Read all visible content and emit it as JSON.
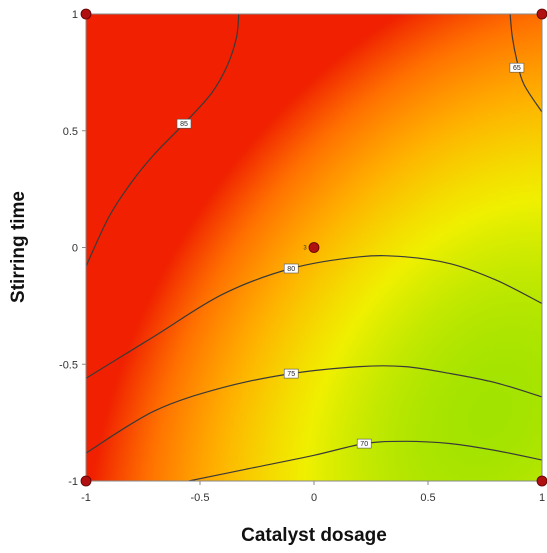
{
  "chart_data": {
    "type": "heatmap",
    "subtype": "contour",
    "title": "",
    "xlabel": "Catalyst dosage",
    "ylabel": "Stirring time",
    "xlim": [
      -1,
      1
    ],
    "ylim": [
      -1,
      1
    ],
    "x_ticks": [
      {
        "value": -1,
        "label": "-1"
      },
      {
        "value": -0.5,
        "label": "-0.5"
      },
      {
        "value": 0,
        "label": "0"
      },
      {
        "value": 0.5,
        "label": "0.5"
      },
      {
        "value": 1,
        "label": "1"
      }
    ],
    "y_ticks": [
      {
        "value": -1,
        "label": "-1"
      },
      {
        "value": -0.5,
        "label": "-0.5"
      },
      {
        "value": 0,
        "label": "0"
      },
      {
        "value": 0.5,
        "label": "0.5"
      },
      {
        "value": 1,
        "label": "1"
      }
    ],
    "colormap": [
      "#00e8c8",
      "#00e000",
      "#8ee000",
      "#f0f000",
      "#ffb000",
      "#ff7000",
      "#f02000"
    ],
    "value_range": [
      68,
      88
    ],
    "contours": [
      {
        "level": 65,
        "label": "65",
        "points": [
          [
            0.86,
            1.0
          ],
          [
            0.87,
            0.9
          ],
          [
            0.89,
            0.8
          ],
          [
            0.92,
            0.7
          ],
          [
            1.0,
            0.58
          ]
        ],
        "label_at": [
          0.89,
          0.77
        ]
      },
      {
        "level": 85,
        "label": "85",
        "points": [
          [
            -1.0,
            -0.08
          ],
          [
            -0.9,
            0.13
          ],
          [
            -0.8,
            0.28
          ],
          [
            -0.7,
            0.4
          ],
          [
            -0.57,
            0.53
          ],
          [
            -0.45,
            0.66
          ],
          [
            -0.38,
            0.78
          ],
          [
            -0.34,
            0.9
          ],
          [
            -0.33,
            1.0
          ]
        ],
        "label_at": [
          -0.57,
          0.53
        ]
      },
      {
        "level": 80,
        "label": "80",
        "points": [
          [
            -1.0,
            -0.56
          ],
          [
            -0.7,
            -0.38
          ],
          [
            -0.4,
            -0.2
          ],
          [
            -0.1,
            -0.09
          ],
          [
            0.2,
            -0.04
          ],
          [
            0.4,
            -0.04
          ],
          [
            0.6,
            -0.07
          ],
          [
            0.8,
            -0.14
          ],
          [
            1.0,
            -0.24
          ]
        ],
        "label_at": [
          -0.1,
          -0.09
        ]
      },
      {
        "level": 75,
        "label": "75",
        "points": [
          [
            -1.0,
            -0.88
          ],
          [
            -0.7,
            -0.7
          ],
          [
            -0.4,
            -0.6
          ],
          [
            -0.1,
            -0.54
          ],
          [
            0.2,
            -0.51
          ],
          [
            0.4,
            -0.51
          ],
          [
            0.6,
            -0.54
          ],
          [
            0.8,
            -0.58
          ],
          [
            1.0,
            -0.64
          ]
        ],
        "label_at": [
          -0.1,
          -0.54
        ]
      },
      {
        "level": 70,
        "label": "70",
        "points": [
          [
            -0.55,
            -1.0
          ],
          [
            -0.3,
            -0.95
          ],
          [
            0.0,
            -0.89
          ],
          [
            0.22,
            -0.84
          ],
          [
            0.4,
            -0.83
          ],
          [
            0.6,
            -0.84
          ],
          [
            0.8,
            -0.87
          ],
          [
            1.0,
            -0.91
          ]
        ],
        "label_at": [
          0.22,
          -0.84
        ]
      }
    ],
    "design_points": [
      {
        "x": -1,
        "y": 1,
        "label": ""
      },
      {
        "x": 1,
        "y": 1,
        "label": ""
      },
      {
        "x": -1,
        "y": -1,
        "label": ""
      },
      {
        "x": 1,
        "y": -1,
        "label": ""
      },
      {
        "x": 0,
        "y": 0,
        "label": "3"
      }
    ],
    "grid": false,
    "legend": "none"
  }
}
